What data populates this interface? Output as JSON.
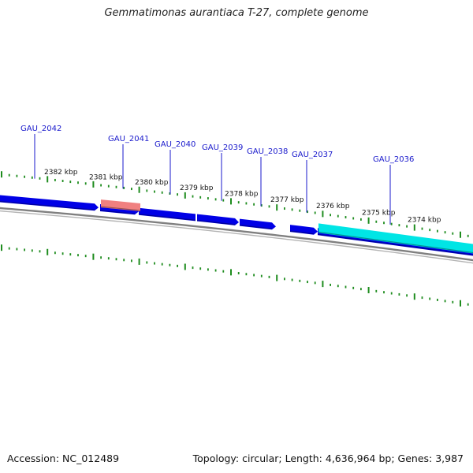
{
  "title": "Gemmatimonas aurantiaca T-27, complete genome",
  "footer": {
    "accession": "Accession: NC_012489",
    "summary": "Topology: circular; Length: 4,636,964 bp; Genes: 3,987"
  },
  "colors": {
    "gene": "#0000e6",
    "gene_highlight": "#f08080",
    "gene_selected": "#00e5e5",
    "backbone": "#808080",
    "ticks": "#1e8c1e",
    "gene_label": "#1a1acc",
    "scale_label": "#111111"
  },
  "scale_labels": [
    "2382 kbp",
    "2381 kbp",
    "2380 kbp",
    "2379 kbp",
    "2378 kbp",
    "2377 kbp",
    "2376 kbp",
    "2375 kbp",
    "2374 kbp"
  ],
  "genes": [
    {
      "label": "GAU_2042"
    },
    {
      "label": "GAU_2041"
    },
    {
      "label": "GAU_2040"
    },
    {
      "label": "GAU_2039"
    },
    {
      "label": "GAU_2038"
    },
    {
      "label": "GAU_2037"
    },
    {
      "label": "GAU_2036"
    }
  ]
}
